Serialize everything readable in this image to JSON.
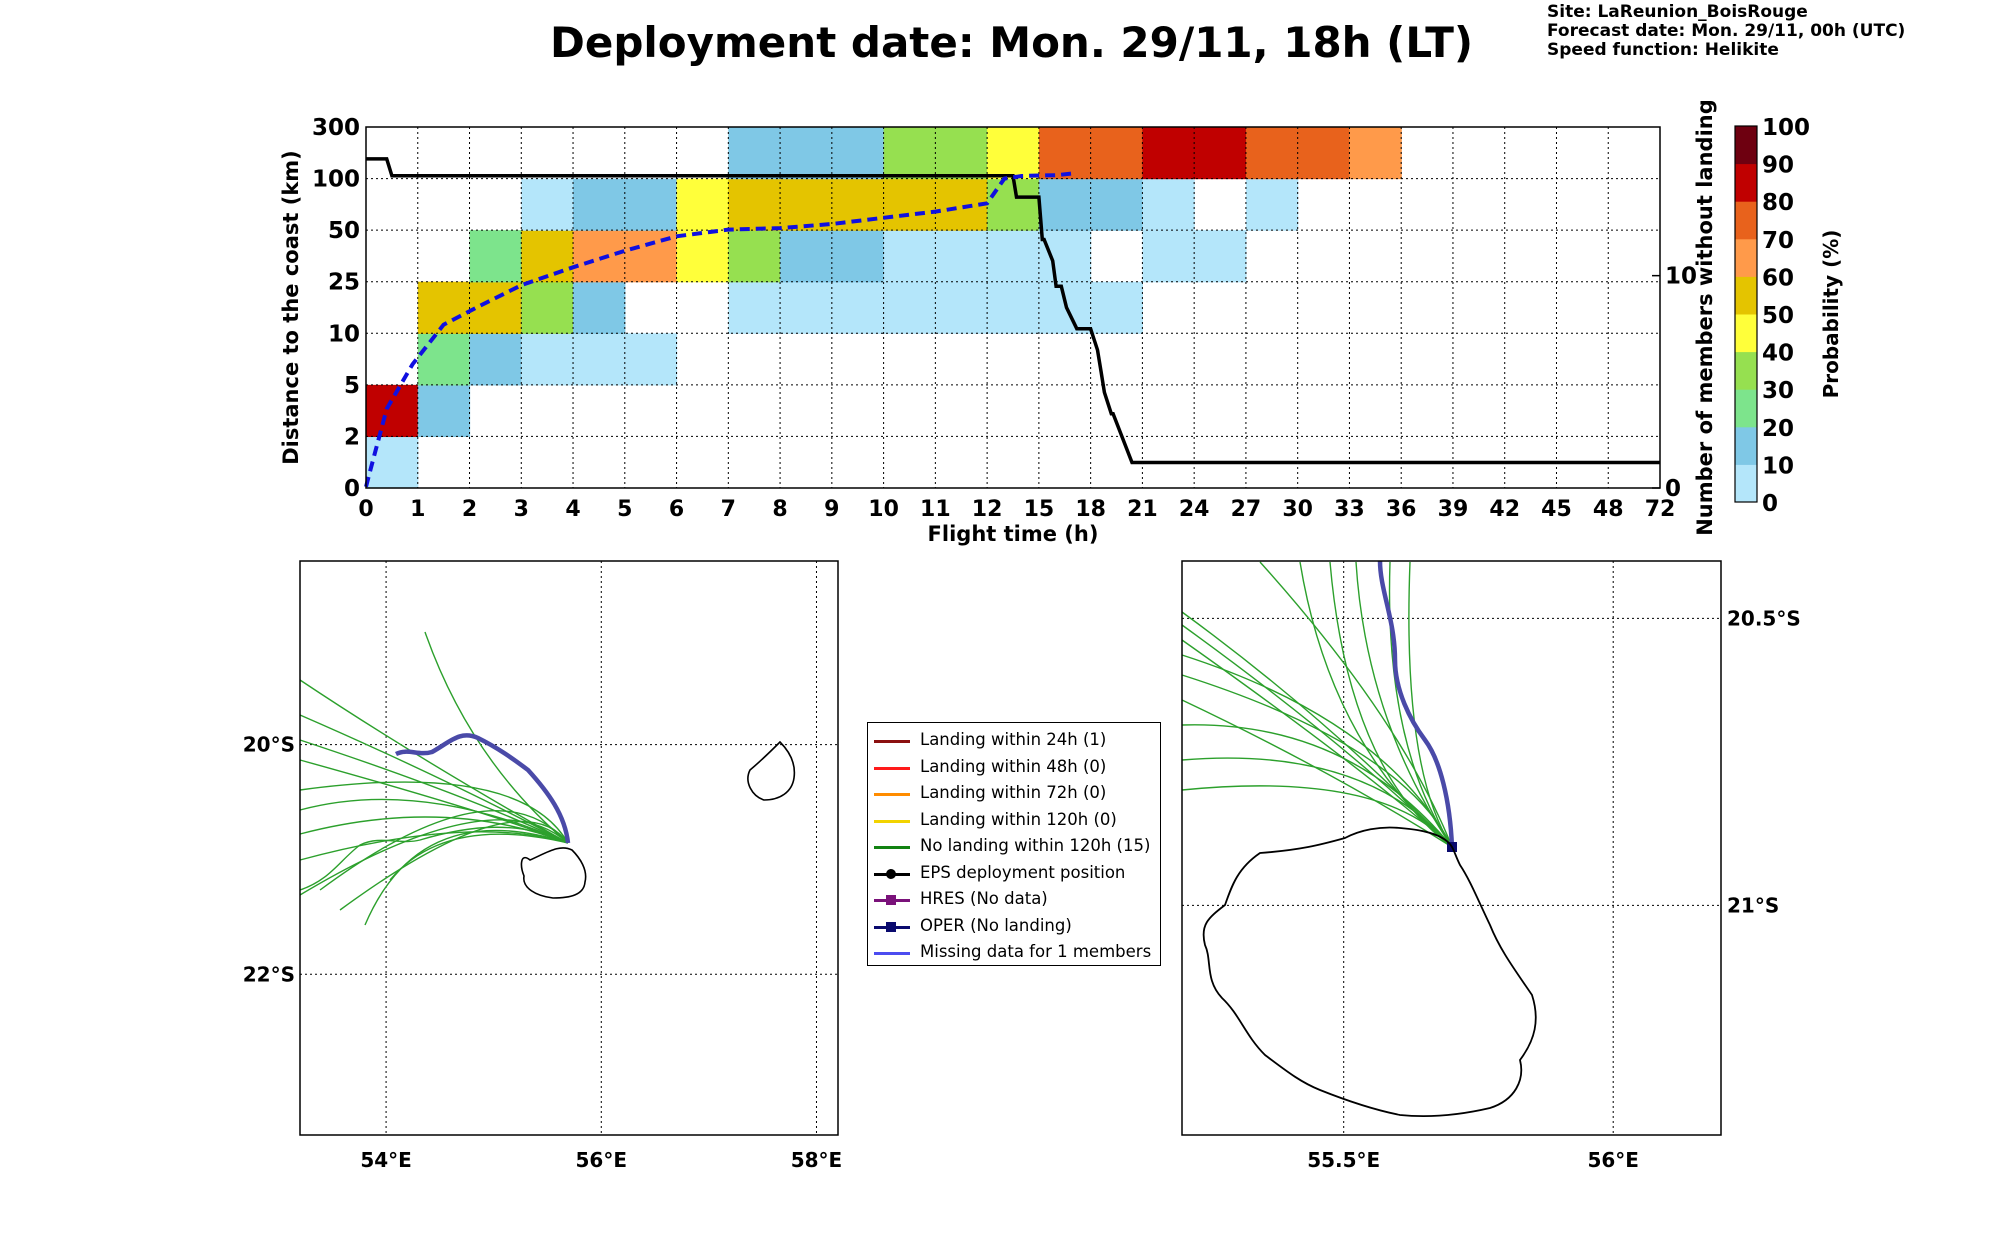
{
  "title": "Deployment date: Mon. 29/11, 18h (LT)",
  "meta": {
    "site": "Site: LaReunion_BoisRouge",
    "forecast": "Forecast date: Mon. 29/11, 00h (UTC)",
    "speed": "Speed function: Helikite"
  },
  "chart_data": [
    {
      "type": "heatmap",
      "xlabel": "Flight time (h)",
      "ylabel": "Distance to the coast (km)",
      "y2label": "Number of members without landing",
      "x_ticks": [
        "0",
        "1",
        "2",
        "3",
        "4",
        "5",
        "6",
        "7",
        "8",
        "9",
        "10",
        "11",
        "12",
        "15",
        "18",
        "21",
        "24",
        "27",
        "30",
        "33",
        "36",
        "39",
        "42",
        "45",
        "48",
        "72"
      ],
      "y_ticks": [
        "0",
        "2",
        "5",
        "10",
        "25",
        "50",
        "100",
        "300"
      ],
      "y2_ticks": [
        "0",
        "10"
      ],
      "y2lim": [
        0,
        17
      ],
      "colorbar": {
        "label": "Probability (%)",
        "levels": [
          "0",
          "10",
          "20",
          "30",
          "40",
          "50",
          "60",
          "70",
          "80",
          "90",
          "100"
        ],
        "colors": [
          "#b4e6fa",
          "#7fc8e6",
          "#7de48c",
          "#96e050",
          "#ffff3a",
          "#e4c400",
          "#ff9a4a",
          "#e8621c",
          "#c00000",
          "#6e0010"
        ]
      },
      "cells": [
        [
          0,
          0,
          0
        ],
        [
          0,
          1,
          8
        ],
        [
          1,
          1,
          1
        ],
        [
          1,
          2,
          2
        ],
        [
          1,
          3,
          5
        ],
        [
          2,
          2,
          1
        ],
        [
          2,
          3,
          5
        ],
        [
          2,
          4,
          2
        ],
        [
          3,
          2,
          0
        ],
        [
          3,
          3,
          3
        ],
        [
          3,
          4,
          5
        ],
        [
          3,
          5,
          0
        ],
        [
          4,
          2,
          0
        ],
        [
          4,
          3,
          1
        ],
        [
          4,
          4,
          6
        ],
        [
          4,
          5,
          1
        ],
        [
          5,
          2,
          0
        ],
        [
          5,
          4,
          6
        ],
        [
          5,
          5,
          1
        ],
        [
          6,
          4,
          4
        ],
        [
          6,
          5,
          4
        ],
        [
          7,
          3,
          0
        ],
        [
          7,
          4,
          3
        ],
        [
          7,
          5,
          5
        ],
        [
          7,
          6,
          1
        ],
        [
          8,
          3,
          0
        ],
        [
          8,
          4,
          1
        ],
        [
          8,
          5,
          5
        ],
        [
          8,
          6,
          1
        ],
        [
          9,
          3,
          0
        ],
        [
          9,
          4,
          1
        ],
        [
          9,
          5,
          5
        ],
        [
          9,
          6,
          1
        ],
        [
          10,
          3,
          0
        ],
        [
          10,
          4,
          0
        ],
        [
          10,
          5,
          5
        ],
        [
          10,
          6,
          3
        ],
        [
          11,
          3,
          0
        ],
        [
          11,
          4,
          0
        ],
        [
          11,
          5,
          5
        ],
        [
          11,
          6,
          3
        ],
        [
          12,
          3,
          0
        ],
        [
          12,
          4,
          0
        ],
        [
          12,
          5,
          3
        ],
        [
          12,
          6,
          4
        ],
        [
          13,
          3,
          0
        ],
        [
          13,
          4,
          0
        ],
        [
          13,
          5,
          1
        ],
        [
          13,
          6,
          7
        ],
        [
          14,
          3,
          0
        ],
        [
          14,
          5,
          1
        ],
        [
          14,
          6,
          7
        ],
        [
          15,
          4,
          0
        ],
        [
          15,
          5,
          0
        ],
        [
          15,
          6,
          8
        ],
        [
          16,
          4,
          0
        ],
        [
          16,
          6,
          8
        ],
        [
          17,
          5,
          0
        ],
        [
          17,
          6,
          7
        ],
        [
          18,
          6,
          7
        ],
        [
          19,
          6,
          6
        ]
      ],
      "members_without_landing": {
        "x": [
          0,
          0.4,
          0.5,
          13.5,
          13.7,
          15,
          15.1,
          15.2,
          15.3,
          15.8,
          16,
          16.3,
          16.6,
          17.2,
          18,
          18.4,
          18.6,
          18.8,
          19.2,
          19.3,
          20.4,
          72
        ],
        "y": [
          15.5,
          15.5,
          14.7,
          14.7,
          13.7,
          13.7,
          12.7,
          11.7,
          11.7,
          10.7,
          9.5,
          9.5,
          8.5,
          7.5,
          7.5,
          6.5,
          5.5,
          4.5,
          3.5,
          3.5,
          1.2,
          1.2
        ]
      },
      "mean_distance": {
        "x": [
          0,
          0.15,
          0.4,
          0.9,
          1.5,
          2.2,
          3,
          4,
          5,
          6,
          7,
          8,
          9,
          10,
          11,
          12,
          13,
          14,
          15,
          16,
          17
        ],
        "y": [
          0.05,
          1.2,
          3.6,
          7,
          12.5,
          18,
          24,
          32,
          40,
          47,
          50.5,
          52,
          56,
          62,
          68,
          76,
          100,
          110,
          112,
          113,
          120
        ]
      }
    },
    {
      "type": "scatter",
      "map": "left",
      "lon_ticks": [
        "54°E",
        "56°E",
        "58°E"
      ],
      "lat_ticks": [
        "20°S",
        "22°S"
      ],
      "lon_range": [
        53.2,
        58.2
      ],
      "lat_range": [
        -23.4,
        -18.4
      ]
    },
    {
      "type": "scatter",
      "map": "right",
      "lon_ticks": [
        "55.5°E",
        "56°E"
      ],
      "lat_ticks": [
        "20.5°S",
        "21°S"
      ],
      "lon_range": [
        55.2,
        56.2
      ],
      "lat_range": [
        -21.4,
        -20.4
      ]
    }
  ],
  "legend": {
    "items": [
      {
        "label": "Landing within 24h (1)",
        "color": "#8b1010",
        "marker": "none"
      },
      {
        "label": "Landing within 48h (0)",
        "color": "#ff1a1a",
        "marker": "none"
      },
      {
        "label": "Landing within 72h (0)",
        "color": "#ff8c00",
        "marker": "none"
      },
      {
        "label": "Landing within 120h (0)",
        "color": "#f2d300",
        "marker": "none"
      },
      {
        "label": "No landing within 120h (15)",
        "color": "#128212",
        "marker": "none"
      },
      {
        "label": "EPS deployment position",
        "color": "#000000",
        "marker": "circle"
      },
      {
        "label": "HRES (No data)",
        "color": "#7a127a",
        "marker": "square"
      },
      {
        "label": "OPER (No landing)",
        "color": "#0a0a6e",
        "marker": "square"
      },
      {
        "label": "Missing data for 1 members",
        "color": "#4c4cf0",
        "marker": "none"
      }
    ]
  }
}
